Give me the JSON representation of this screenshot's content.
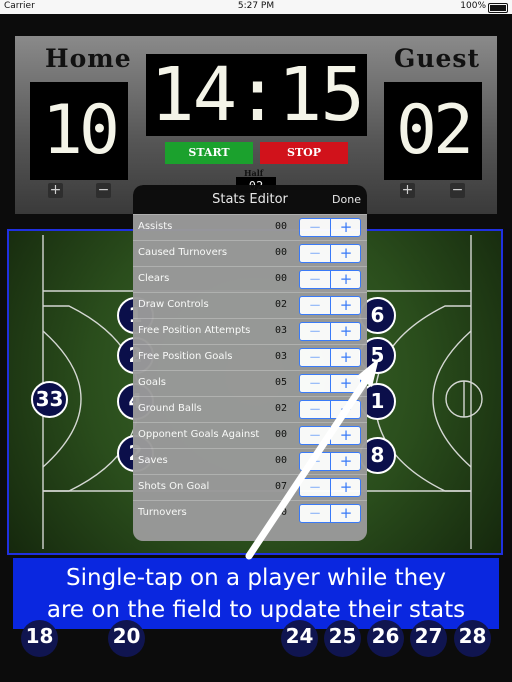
{
  "status_bar": {
    "carrier": "Carrier",
    "wifi": "wifi-icon",
    "time": "5:27 PM",
    "battery": "100%"
  },
  "scoreboard": {
    "home_label": "Home",
    "guest_label": "Guest",
    "home_score": "10",
    "guest_score": "02",
    "clock": "14:15",
    "start_label": "START",
    "stop_label": "STOP",
    "half_label": "Half",
    "half_value": "02",
    "plus": "+",
    "minus": "−"
  },
  "field_players": {
    "left": [
      "33",
      "1",
      "2",
      "4",
      "2"
    ],
    "right": [
      "6",
      "5",
      "1",
      "8"
    ]
  },
  "bench_players": [
    "18",
    "20",
    "24",
    "25",
    "26",
    "27",
    "28"
  ],
  "stats_editor": {
    "title": "Stats Editor",
    "done_label": "Done",
    "minus": "−",
    "plus": "+",
    "rows": [
      {
        "label": "Assists",
        "value": "00"
      },
      {
        "label": "Caused Turnovers",
        "value": "00"
      },
      {
        "label": "Clears",
        "value": "00"
      },
      {
        "label": "Draw Controls",
        "value": "02"
      },
      {
        "label": "Free Position Attempts",
        "value": "03"
      },
      {
        "label": "Free Position Goals",
        "value": "03"
      },
      {
        "label": "Goals",
        "value": "05"
      },
      {
        "label": "Ground Balls",
        "value": "02"
      },
      {
        "label": "Opponent Goals Against",
        "value": "00"
      },
      {
        "label": "Saves",
        "value": "00"
      },
      {
        "label": "Shots On Goal",
        "value": "07"
      },
      {
        "label": "Turnovers",
        "value": "00"
      }
    ]
  },
  "banner": {
    "line1": "Single-tap on a player while they",
    "line2": "are on the field to update their stats"
  },
  "colors": {
    "accent_blue": "#0a27e0",
    "start_green": "#1ba12d",
    "stop_red": "#d1121b",
    "stepper_blue": "#3a7cff"
  }
}
